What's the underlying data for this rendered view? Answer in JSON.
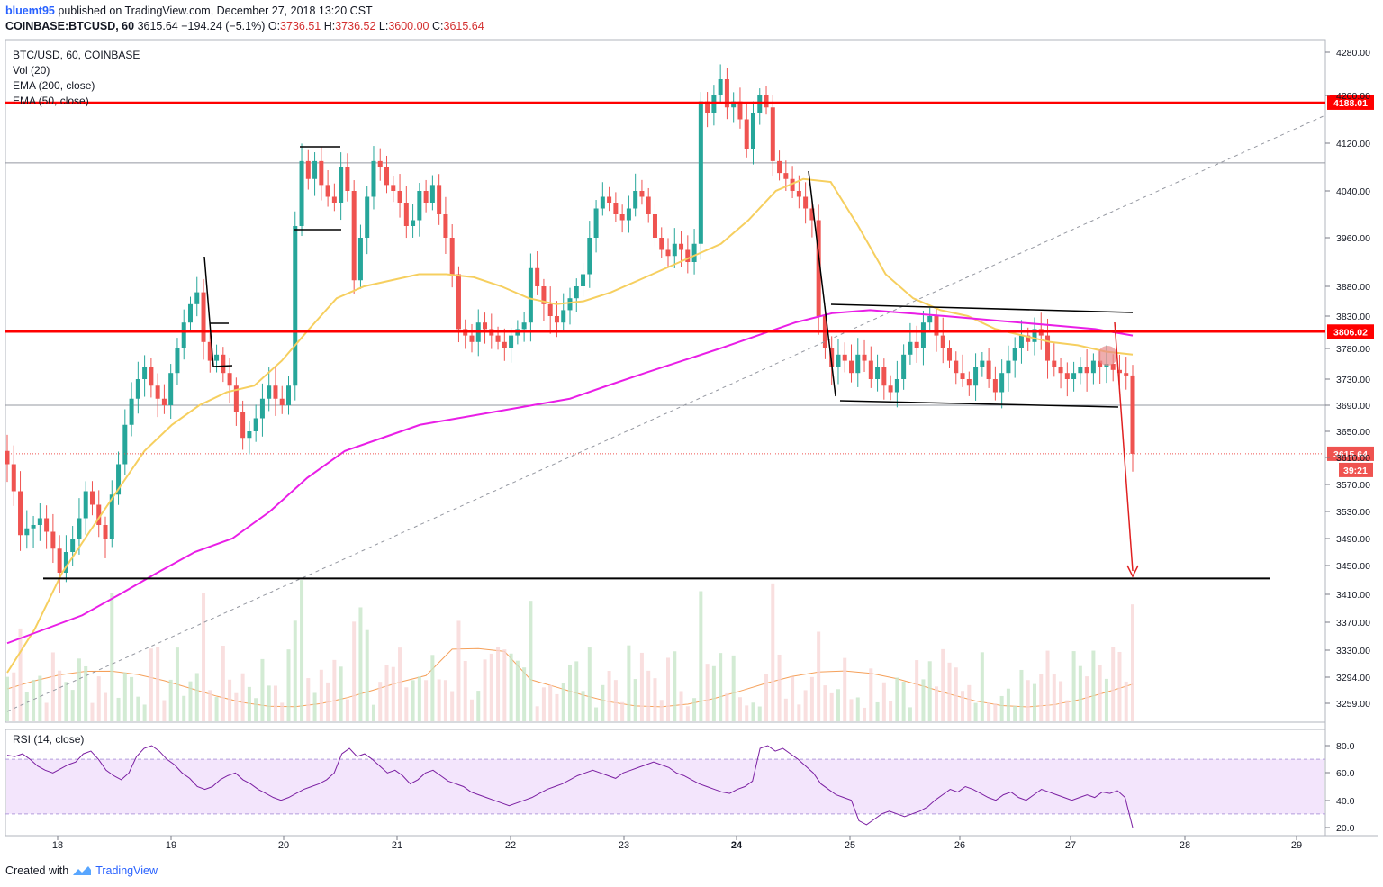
{
  "header": {
    "author": "bluemt95",
    "published_text": "published on TradingView.com, December 27, 2018 13:20 CST",
    "symbol": "COINBASE:BTCUSD, 60",
    "price": "3615.64",
    "change": "−194.24 (−5.1%)",
    "open_label": "O:",
    "open": "3736.51",
    "high_label": "H:",
    "high": "3736.52",
    "low_label": "L:",
    "low": "3600.00",
    "close_label": "C:",
    "close": "3615.64"
  },
  "legend": {
    "title": "BTC/USD, 60, COINBASE",
    "vol": "Vol (20)",
    "ema200": "EMA (200, close)",
    "ema50": "EMA (50, close)"
  },
  "rsi": {
    "label": "RSI (14, close)"
  },
  "footer": {
    "created": "Created with",
    "brand": "TradingView"
  },
  "colors": {
    "up": "#26a69a",
    "down": "#ef5350",
    "ema50": "#f6cf5f",
    "ema200": "#e91ee6",
    "support_resistance": "#ff0000",
    "rsi_line": "#7b1fa2",
    "rsi_band": "#f3e5fc"
  },
  "chart_data": [
    {
      "type": "candlestick",
      "title": "BTC/USD, 60, COINBASE",
      "x_tick_labels": [
        "18",
        "19",
        "20",
        "21",
        "22",
        "23",
        "24",
        "25",
        "26",
        "27",
        "28",
        "29"
      ],
      "y_tick_labels": [
        4280,
        4200,
        4120,
        4040,
        3960,
        3880,
        3830,
        3780,
        3730,
        3690,
        3650,
        3610,
        3570,
        3530,
        3490,
        3450,
        3410,
        3370,
        3330,
        3294,
        3259
      ],
      "ylim": [
        3230,
        4300
      ],
      "horizontal_levels": [
        {
          "value": 4188.01,
          "label": "4188.01",
          "color": "#ff0000"
        },
        {
          "value": 3806.02,
          "label": "3806.02",
          "color": "#ff0000"
        },
        {
          "value": 3432,
          "label": "",
          "color": "#000000"
        }
      ],
      "last_price": {
        "value": 3615.64,
        "label": "3615.64",
        "countdown": "39:21"
      },
      "close_series": [
        3600,
        3560,
        3495,
        3505,
        3510,
        3520,
        3500,
        3475,
        3440,
        3470,
        3490,
        3520,
        3560,
        3540,
        3510,
        3490,
        3555,
        3600,
        3660,
        3700,
        3730,
        3750,
        3720,
        3700,
        3690,
        3740,
        3780,
        3820,
        3850,
        3870,
        3790,
        3760,
        3770,
        3740,
        3720,
        3680,
        3640,
        3650,
        3670,
        3700,
        3720,
        3700,
        3690,
        3720,
        3980,
        4090,
        4060,
        4090,
        4050,
        4030,
        4020,
        4080,
        4040,
        3890,
        3960,
        4030,
        4090,
        4080,
        4050,
        4040,
        4020,
        3980,
        3990,
        4040,
        4020,
        4050,
        4000,
        3960,
        3900,
        3810,
        3800,
        3790,
        3820,
        3810,
        3800,
        3790,
        3780,
        3800,
        3810,
        3820,
        3910,
        3880,
        3850,
        3830,
        3820,
        3840,
        3860,
        3880,
        3900,
        3960,
        4010,
        4030,
        4020,
        4000,
        3990,
        4010,
        4040,
        4030,
        4000,
        3960,
        3940,
        3930,
        3950,
        3940,
        3920,
        3950,
        4190,
        4170,
        4200,
        4230,
        4180,
        4190,
        4160,
        4110,
        4170,
        4200,
        4180,
        4090,
        4070,
        4060,
        4040,
        4030,
        4010,
        3990,
        3830,
        3780,
        3750,
        3770,
        3760,
        3740,
        3770,
        3760,
        3730,
        3750,
        3720,
        3710,
        3730,
        3770,
        3790,
        3780,
        3820,
        3830,
        3800,
        3780,
        3760,
        3740,
        3730,
        3720,
        3750,
        3760,
        3730,
        3710,
        3740,
        3760,
        3780,
        3800,
        3790,
        3810,
        3800,
        3760,
        3750,
        3740,
        3730,
        3740,
        3750,
        3740,
        3760,
        3750,
        3755,
        3745,
        3740,
        3736,
        3615.64
      ],
      "ema50": [
        3300,
        3360,
        3440,
        3500,
        3560,
        3620,
        3660,
        3690,
        3710,
        3720,
        3760,
        3810,
        3860,
        3880,
        3890,
        3900,
        3900,
        3895,
        3880,
        3860,
        3850,
        3855,
        3870,
        3890,
        3910,
        3930,
        3950,
        3990,
        4040,
        4060,
        4055,
        3980,
        3900,
        3860,
        3840,
        3830,
        3810,
        3800,
        3790,
        3785,
        3775,
        3770
      ],
      "ema200": [
        3340,
        3360,
        3380,
        3410,
        3440,
        3470,
        3490,
        3530,
        3580,
        3620,
        3640,
        3660,
        3670,
        3680,
        3690,
        3700,
        3720,
        3740,
        3760,
        3780,
        3800,
        3820,
        3835,
        3840,
        3835,
        3830,
        3825,
        3820,
        3815,
        3810,
        3800
      ],
      "annotations": [
        "ascending dashed trendline",
        "descending channel",
        "red projection arrow to 3432"
      ]
    },
    {
      "type": "bar",
      "name": "Vol (20)",
      "values": "volume bars with 20-period moving average"
    },
    {
      "type": "line",
      "name": "RSI (14, close)",
      "y_tick_labels": [
        80.0,
        60.0,
        40.0,
        20.0
      ],
      "ylim": [
        15,
        88
      ],
      "band": [
        30,
        70
      ],
      "values": [
        73,
        72,
        74,
        70,
        65,
        62,
        60,
        63,
        66,
        68,
        74,
        76,
        70,
        62,
        58,
        55,
        60,
        72,
        78,
        80,
        76,
        70,
        66,
        60,
        56,
        50,
        48,
        50,
        55,
        58,
        60,
        55,
        52,
        48,
        45,
        42,
        40,
        42,
        45,
        48,
        50,
        52,
        55,
        60,
        74,
        78,
        72,
        74,
        70,
        65,
        60,
        62,
        58,
        52,
        55,
        60,
        62,
        58,
        54,
        52,
        50,
        46,
        44,
        42,
        40,
        38,
        36,
        38,
        40,
        42,
        45,
        48,
        50,
        52,
        55,
        58,
        60,
        62,
        60,
        58,
        56,
        60,
        62,
        64,
        66,
        68,
        66,
        64,
        60,
        58,
        55,
        52,
        50,
        48,
        46,
        45,
        48,
        50,
        54,
        78,
        80,
        76,
        78,
        74,
        70,
        65,
        60,
        52,
        48,
        44,
        42,
        40,
        25,
        22,
        26,
        30,
        32,
        30,
        28,
        30,
        32,
        35,
        40,
        44,
        48,
        46,
        50,
        48,
        45,
        42,
        40,
        44,
        46,
        42,
        40,
        44,
        48,
        46,
        44,
        42,
        40,
        42,
        44,
        42,
        46,
        45,
        47,
        42,
        20
      ]
    }
  ]
}
